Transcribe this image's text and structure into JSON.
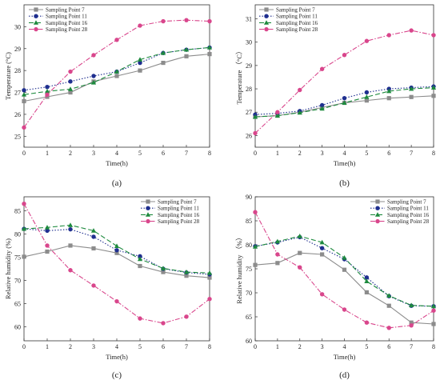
{
  "chart_data": [
    {
      "type": "line",
      "panel_label": "(a)",
      "xlabel": "Time(h)",
      "ylabel": "Temperature (°C)",
      "xlim": [
        0,
        8
      ],
      "ylim": [
        24.5,
        31.0
      ],
      "xticks": [
        "0",
        "1",
        "2",
        "3",
        "4",
        "5",
        "6",
        "7",
        "8"
      ],
      "yticks": [
        "25",
        "26",
        "27",
        "28",
        "29",
        "30"
      ],
      "ytick_values": [
        25,
        26,
        27,
        28,
        29,
        30
      ],
      "legend_position": "top-left",
      "x": [
        0,
        1,
        2,
        3,
        4,
        5,
        6,
        7,
        8
      ],
      "series": [
        {
          "name": "Sampling Point 7",
          "values": [
            26.6,
            26.8,
            27.0,
            27.5,
            27.75,
            28.0,
            28.35,
            28.65,
            28.75
          ]
        },
        {
          "name": "Sampling Point 11",
          "values": [
            27.1,
            27.25,
            27.5,
            27.75,
            27.95,
            28.35,
            28.8,
            28.95,
            29.05
          ]
        },
        {
          "name": "Sampling Point 16",
          "values": [
            26.9,
            27.05,
            27.15,
            27.45,
            27.95,
            28.5,
            28.8,
            28.95,
            29.05
          ]
        },
        {
          "name": "Sampling Point 28",
          "values": [
            25.4,
            26.9,
            27.95,
            28.7,
            29.4,
            30.05,
            30.25,
            30.3,
            30.25
          ]
        }
      ]
    },
    {
      "type": "line",
      "panel_label": "(b)",
      "xlabel": "Time(h)",
      "ylabel": "Temperature （°C）",
      "xlim": [
        0,
        8
      ],
      "ylim": [
        25.5,
        31.6
      ],
      "xticks": [
        "0",
        "1",
        "2",
        "3",
        "4",
        "5",
        "6",
        "7",
        "8"
      ],
      "yticks": [
        "26",
        "27",
        "28",
        "29",
        "30",
        "31"
      ],
      "ytick_values": [
        26,
        27,
        28,
        29,
        30,
        31
      ],
      "legend_position": "top-left",
      "x": [
        0,
        1,
        2,
        3,
        4,
        5,
        6,
        7,
        8
      ],
      "series": [
        {
          "name": "Sampling Point 7",
          "values": [
            26.8,
            26.85,
            27.0,
            27.2,
            27.4,
            27.5,
            27.6,
            27.65,
            27.7
          ]
        },
        {
          "name": "Sampling Point 11",
          "values": [
            26.9,
            26.95,
            27.05,
            27.3,
            27.6,
            27.85,
            28.0,
            28.05,
            28.1
          ]
        },
        {
          "name": "Sampling Point 16",
          "values": [
            26.8,
            26.85,
            26.98,
            27.15,
            27.4,
            27.65,
            27.9,
            28.0,
            28.05
          ]
        },
        {
          "name": "Sampling Point 28",
          "values": [
            26.1,
            27.0,
            27.95,
            28.85,
            29.45,
            30.05,
            30.3,
            30.5,
            30.3
          ]
        }
      ]
    },
    {
      "type": "line",
      "panel_label": "(c)",
      "xlabel": "Time(h)",
      "ylabel": "Relative humidity (%)",
      "xlim": [
        0,
        8
      ],
      "ylim": [
        57.0,
        88.0
      ],
      "xticks": [
        "0",
        "1",
        "2",
        "3",
        "4",
        "5",
        "6",
        "7",
        "8"
      ],
      "yticks": [
        "60",
        "65",
        "70",
        "75",
        "80",
        "85"
      ],
      "ytick_values": [
        60,
        65,
        70,
        75,
        80,
        85
      ],
      "legend_position": "top-right",
      "x": [
        0,
        1,
        2,
        3,
        4,
        5,
        6,
        7,
        8
      ],
      "series": [
        {
          "name": "Sampling Point 7",
          "values": [
            75.1,
            76.2,
            77.5,
            76.9,
            75.9,
            73.1,
            71.8,
            71.0,
            70.6
          ]
        },
        {
          "name": "Sampling Point 11",
          "values": [
            81.1,
            80.7,
            81.0,
            79.4,
            76.5,
            75.2,
            72.5,
            71.7,
            71.3
          ]
        },
        {
          "name": "Sampling Point 16",
          "values": [
            81.1,
            81.4,
            81.9,
            80.7,
            77.4,
            74.6,
            72.6,
            71.8,
            71.6
          ]
        },
        {
          "name": "Sampling Point 28",
          "values": [
            86.5,
            77.5,
            72.2,
            68.9,
            65.5,
            61.8,
            60.8,
            62.2,
            66.0
          ]
        }
      ]
    },
    {
      "type": "line",
      "panel_label": "(d)",
      "xlabel": "Time(h)",
      "ylabel": "Relative humidity （%）",
      "xlim": [
        0,
        8
      ],
      "ylim": [
        60.0,
        90.0
      ],
      "xticks": [
        "0",
        "1",
        "2",
        "3",
        "4",
        "5",
        "6",
        "7",
        "8"
      ],
      "yticks": [
        "60",
        "65",
        "70",
        "75",
        "80",
        "85",
        "90"
      ],
      "ytick_values": [
        60,
        65,
        70,
        75,
        80,
        85,
        90
      ],
      "legend_position": "top-right",
      "x": [
        0,
        1,
        2,
        3,
        4,
        5,
        6,
        7,
        8
      ],
      "series": [
        {
          "name": "Sampling Point 7",
          "values": [
            75.8,
            76.2,
            78.3,
            78.0,
            74.8,
            70.1,
            67.3,
            63.8,
            63.5
          ]
        },
        {
          "name": "Sampling Point 11",
          "values": [
            79.7,
            80.5,
            81.6,
            79.3,
            77.0,
            73.2,
            69.3,
            67.3,
            67.2
          ]
        },
        {
          "name": "Sampling Point 16",
          "values": [
            79.6,
            80.7,
            81.8,
            80.5,
            77.3,
            72.4,
            69.4,
            67.4,
            67.2
          ]
        },
        {
          "name": "Sampling Point 28",
          "values": [
            86.8,
            78.0,
            75.3,
            69.7,
            66.5,
            63.8,
            62.7,
            63.2,
            66.3
          ]
        }
      ]
    }
  ],
  "series_styles": [
    {
      "color": "#8c8c8c",
      "marker": "square",
      "dash": ""
    },
    {
      "color": "#1f2f8f",
      "marker": "circle",
      "dash": "1.5,2"
    },
    {
      "color": "#1e8a3e",
      "marker": "triangle",
      "dash": "6,3"
    },
    {
      "color": "#d9468c",
      "marker": "circle",
      "dash": "6,2,1.5,2"
    }
  ]
}
